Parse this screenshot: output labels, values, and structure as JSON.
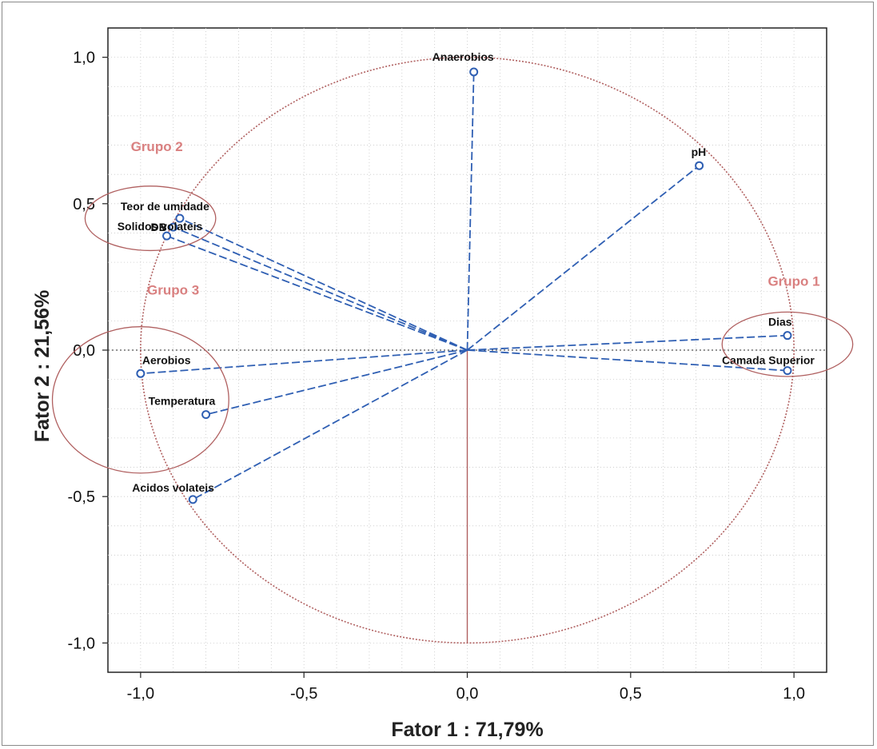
{
  "chart_data": {
    "type": "scatter",
    "subtype": "pca-correlation-circle",
    "title": "",
    "xlabel": "Fator 1 : 71,79%",
    "ylabel": "Fator 2 : 21,56%",
    "xlim": [
      -1.1,
      1.1
    ],
    "ylim": [
      -1.1,
      1.1
    ],
    "x_ticks": [
      -1.0,
      -0.5,
      0.0,
      0.5,
      1.0
    ],
    "y_ticks": [
      -1.0,
      -0.5,
      0.0,
      0.5,
      1.0
    ],
    "x_tick_labels": [
      "-1,0",
      "-0,5",
      "0,0",
      "0,5",
      "1,0"
    ],
    "y_tick_labels": [
      "-1,0",
      "-0,5",
      "0,0",
      "0,5",
      "1,0"
    ],
    "grid": true,
    "unit_circle": true,
    "colors": {
      "vector": "#2f5fb3",
      "circle": "#b06060",
      "axis_line": "#b06060",
      "group": "#d98080",
      "grid": "#c8c8c8"
    },
    "points": [
      {
        "label": "Anaerobios",
        "x": 0.02,
        "y": 0.95
      },
      {
        "label": "pH",
        "x": 0.71,
        "y": 0.63
      },
      {
        "label": "Teor de umidade",
        "x": -0.88,
        "y": 0.45
      },
      {
        "label": "Solidos volateis",
        "x": -0.9,
        "y": 0.42
      },
      {
        "label": "DB",
        "x": -0.92,
        "y": 0.39
      },
      {
        "label": "Dias",
        "x": 0.98,
        "y": 0.05
      },
      {
        "label": "Camada Superior",
        "x": 0.98,
        "y": -0.07
      },
      {
        "label": "Aerobios",
        "x": -1.0,
        "y": -0.08
      },
      {
        "label": "Temperatura",
        "x": -0.8,
        "y": -0.22
      },
      {
        "label": "Acidos volateis",
        "x": -0.84,
        "y": -0.51
      }
    ],
    "annotations": [
      {
        "text": "Grupo 1",
        "cx": 0.98,
        "cy": 0.02,
        "rx": 0.2,
        "ry": 0.11,
        "label_x": 0.92,
        "label_y": 0.22
      },
      {
        "text": "Grupo 2",
        "cx": -0.97,
        "cy": 0.45,
        "rx": 0.2,
        "ry": 0.11,
        "label_x": -1.03,
        "label_y": 0.68
      },
      {
        "text": "Grupo 3",
        "cx": -1.0,
        "cy": -0.17,
        "rx": 0.27,
        "ry": 0.25,
        "label_x": -0.98,
        "label_y": 0.19
      }
    ]
  }
}
